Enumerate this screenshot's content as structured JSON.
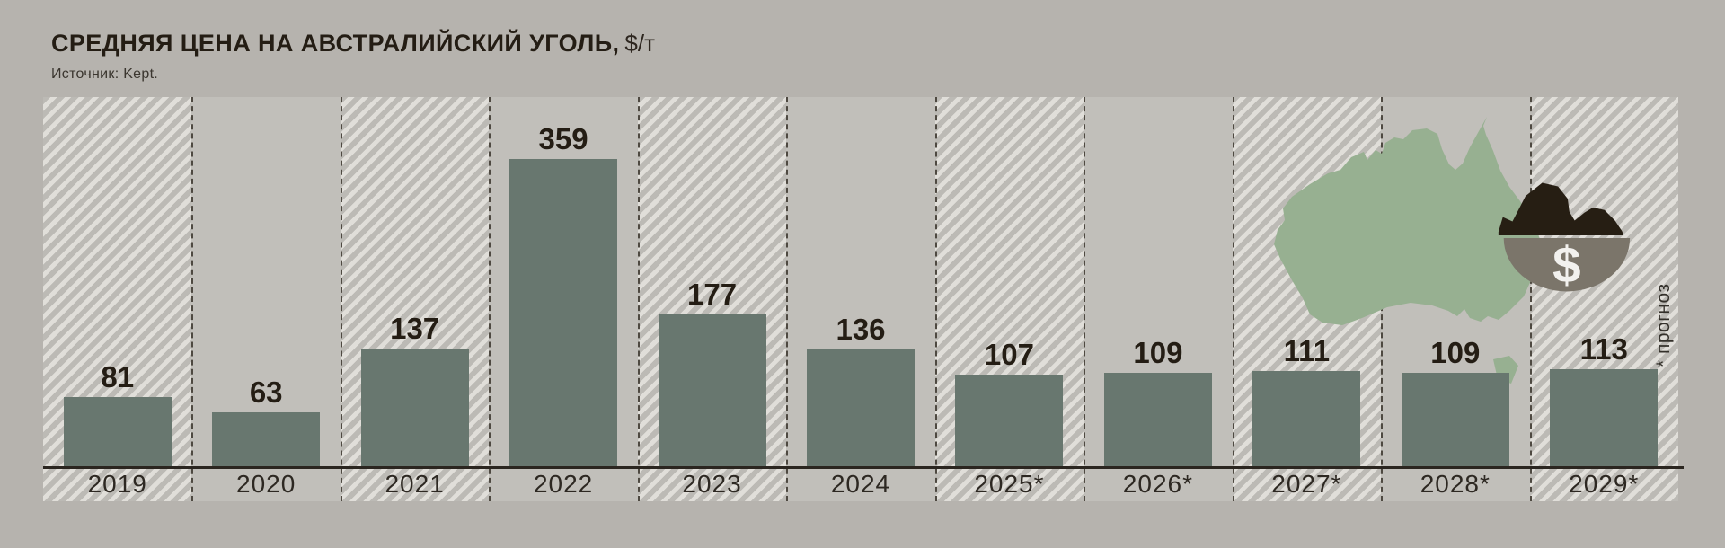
{
  "header": {
    "title": "СРЕДНЯЯ ЦЕНА НА АВСТРАЛИЙСКИЙ УГОЛЬ,",
    "unit": "$/т",
    "source": "Источник: Kept."
  },
  "chart_data": {
    "type": "bar",
    "title": "Средняя цена на австралийский уголь, $/т",
    "categories": [
      "2019",
      "2020",
      "2021",
      "2022",
      "2023",
      "2024",
      "2025*",
      "2026*",
      "2027*",
      "2028*",
      "2029*"
    ],
    "values": [
      81,
      63,
      137,
      359,
      177,
      136,
      107,
      109,
      111,
      109,
      113
    ],
    "forecast_categories": [
      "2025*",
      "2026*",
      "2027*",
      "2028*",
      "2029*"
    ],
    "hatched_categories": [
      "2019",
      "2021",
      "2023",
      "2025*",
      "2027*",
      "2029*"
    ],
    "footnote": "* прогноз",
    "xlabel": "",
    "ylabel": "$/т",
    "ylim": [
      0,
      380
    ],
    "grid": "off",
    "legend": "none",
    "bar_color": "#68776f",
    "value_label_color": "#241d14"
  },
  "icons": {
    "australia_map": "australia-map",
    "coal_bowl": "coal-dollar-bowl-icon",
    "dollar_sign": "$"
  },
  "colors": {
    "page_background": "#b6b3ae",
    "plain_column": "#c1bfba",
    "hatch_base": "#bcbab5",
    "hatch_stripe": "#e0ded9",
    "bar": "#68776f",
    "axis": "#2b2620",
    "dashed_line": "#4e4941",
    "map_green": "#97b091",
    "coal_black": "#261e13",
    "bowl_gray": "#7b756a",
    "text_dark": "#241d14"
  }
}
